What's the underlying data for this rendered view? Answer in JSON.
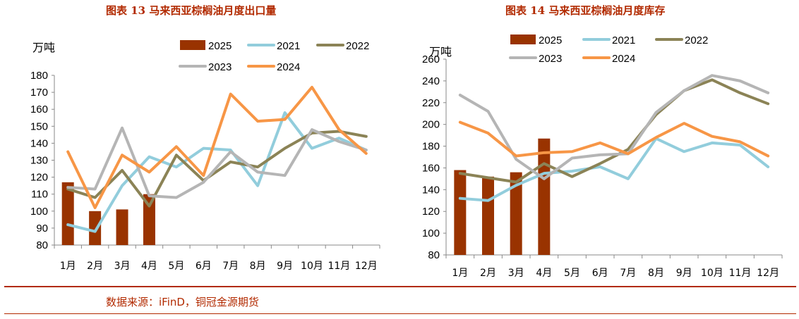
{
  "source": "数据来源：iFinD，铜冠金源期货",
  "colors": {
    "2025": "#993300",
    "2021": "#92cddc",
    "2022": "#8b8356",
    "2023": "#b5b5b5",
    "2024": "#f79646",
    "title": "#b22a00"
  },
  "chart_data": [
    {
      "type": "bar+line",
      "title": "图表 13  马来西亚棕榈油月度出口量",
      "ylabel": "万吨",
      "ylim": [
        80,
        180
      ],
      "yticks": [
        "80",
        "90",
        "100",
        "110",
        "120",
        "130",
        "140",
        "150",
        "160",
        "170",
        "180"
      ],
      "categories": [
        "1月",
        "2月",
        "3月",
        "4月",
        "5月",
        "6月",
        "7月",
        "8月",
        "9月",
        "10月",
        "11月",
        "12月"
      ],
      "legend": "top",
      "bar_series": {
        "name": "2025",
        "values": [
          117,
          100,
          101,
          110
        ]
      },
      "series": [
        {
          "name": "2021",
          "values": [
            92,
            88,
            115,
            132,
            126,
            137,
            136,
            115,
            158,
            137,
            143,
            136
          ]
        },
        {
          "name": "2022",
          "values": [
            113,
            108,
            124,
            103,
            133,
            118,
            129,
            126,
            137,
            146,
            147,
            144
          ]
        },
        {
          "name": "2023",
          "values": [
            114,
            113,
            149,
            109,
            108,
            117,
            135,
            123,
            121,
            148,
            141,
            136
          ]
        },
        {
          "name": "2024",
          "values": [
            135,
            102,
            133,
            123,
            138,
            121,
            169,
            153,
            154,
            173,
            148,
            134
          ]
        }
      ]
    },
    {
      "type": "bar+line",
      "title": "图表 14  马来西亚棕榈油月度库存",
      "ylabel": "万吨",
      "ylim": [
        80,
        260
      ],
      "yticks": [
        "80",
        "100",
        "120",
        "140",
        "160",
        "180",
        "200",
        "220",
        "240",
        "260"
      ],
      "categories": [
        "1月",
        "2月",
        "3月",
        "4月",
        "5月",
        "6月",
        "7月",
        "8月",
        "9月",
        "10月",
        "11月",
        "12月"
      ],
      "legend": "top",
      "bar_series": {
        "name": "2025",
        "values": [
          158,
          152,
          156,
          187
        ]
      },
      "series": [
        {
          "name": "2021",
          "values": [
            132,
            130,
            144,
            155,
            157,
            161,
            150,
            187,
            175,
            183,
            181,
            161
          ]
        },
        {
          "name": "2022",
          "values": [
            155,
            151,
            147,
            164,
            152,
            164,
            177,
            209,
            231,
            241,
            229,
            219
          ]
        },
        {
          "name": "2023",
          "values": [
            227,
            212,
            168,
            150,
            169,
            172,
            173,
            211,
            231,
            245,
            240,
            229
          ]
        },
        {
          "name": "2024",
          "values": [
            202,
            192,
            171,
            174,
            175,
            183,
            173,
            188,
            201,
            189,
            184,
            171
          ]
        }
      ]
    }
  ]
}
